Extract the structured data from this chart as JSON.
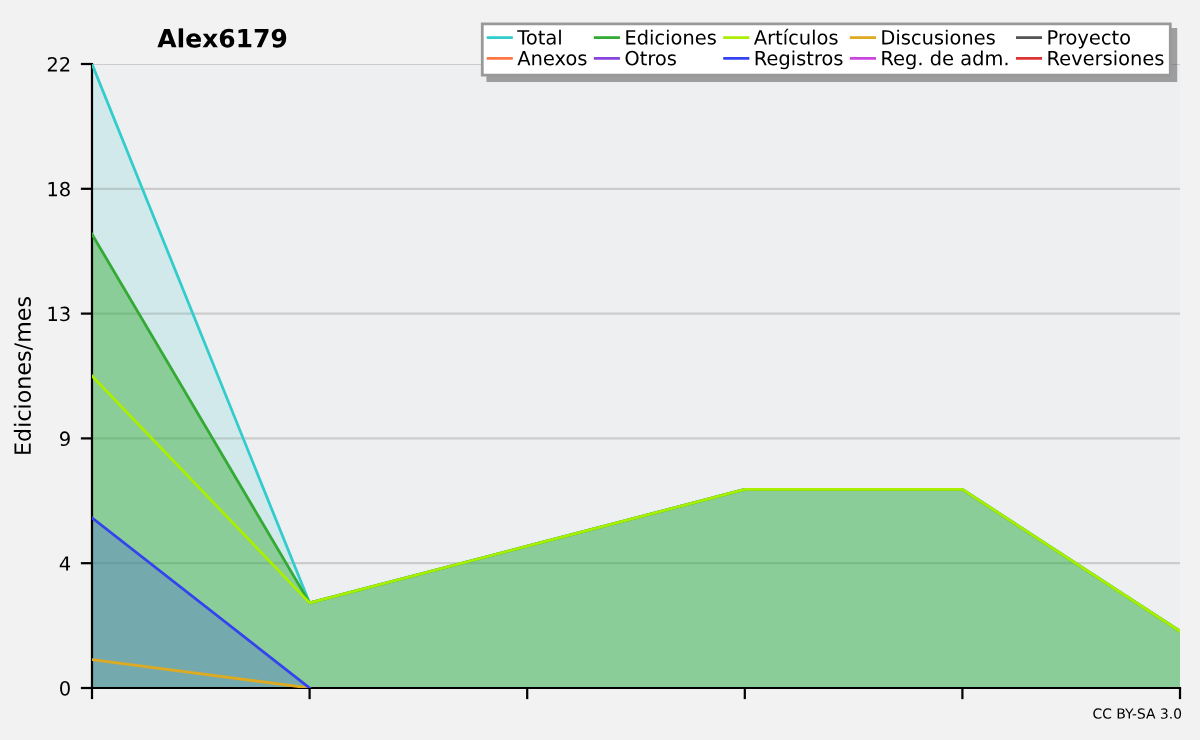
{
  "chart_data": {
    "type": "area",
    "title": "Alex6179",
    "ylabel": "Ediciones/mes",
    "categories": [
      null,
      null,
      null,
      null,
      null,
      null
    ],
    "ylim": [
      0,
      22
    ],
    "yticks": [
      0,
      {
        "value": 4.4,
        "label": "4"
      },
      {
        "value": 8.8,
        "label": "9"
      },
      {
        "value": 13.2,
        "label": "13"
      },
      {
        "value": 17.6,
        "label": "18"
      },
      22
    ],
    "grid": "y",
    "legend": "top right",
    "annotations": [
      "CC BY-SA 3.0"
    ],
    "series": [
      {
        "name": "Total",
        "color": "#33cccc",
        "values": [
          22,
          3,
          5,
          7,
          7,
          2
        ]
      },
      {
        "name": "Ediciones",
        "color": "#33aa33",
        "values": [
          16,
          3,
          5,
          7,
          7,
          2
        ]
      },
      {
        "name": "Artículos",
        "type": "line",
        "color": "#aaee00",
        "values": [
          11,
          3,
          5,
          7,
          7,
          2
        ]
      },
      {
        "name": "Discusiones",
        "type": "line",
        "color": "#ddaa22",
        "values": [
          1,
          0,
          null,
          null,
          null,
          null
        ]
      },
      {
        "name": "Proyecto",
        "type": "line",
        "color": "#555555",
        "values": [
          null,
          null,
          null,
          null,
          null,
          null
        ]
      },
      {
        "name": "Anexos",
        "type": "line",
        "color": "#ff7744",
        "values": [
          null,
          null,
          null,
          null,
          null,
          null
        ]
      },
      {
        "name": "Otros",
        "type": "line",
        "color": "#8844dd",
        "values": [
          null,
          null,
          null,
          null,
          null,
          null
        ]
      },
      {
        "name": "Registros",
        "color": "#3344ee",
        "values": [
          6,
          0,
          null,
          null,
          null,
          null
        ]
      },
      {
        "name": "Reg. de adm.",
        "type": "line",
        "color": "#cc44dd",
        "values": [
          null,
          null,
          null,
          null,
          null,
          null
        ]
      },
      {
        "name": "Reversiones",
        "type": "line",
        "color": "#dd3333",
        "values": [
          null,
          null,
          null,
          null,
          null,
          null
        ]
      }
    ]
  }
}
